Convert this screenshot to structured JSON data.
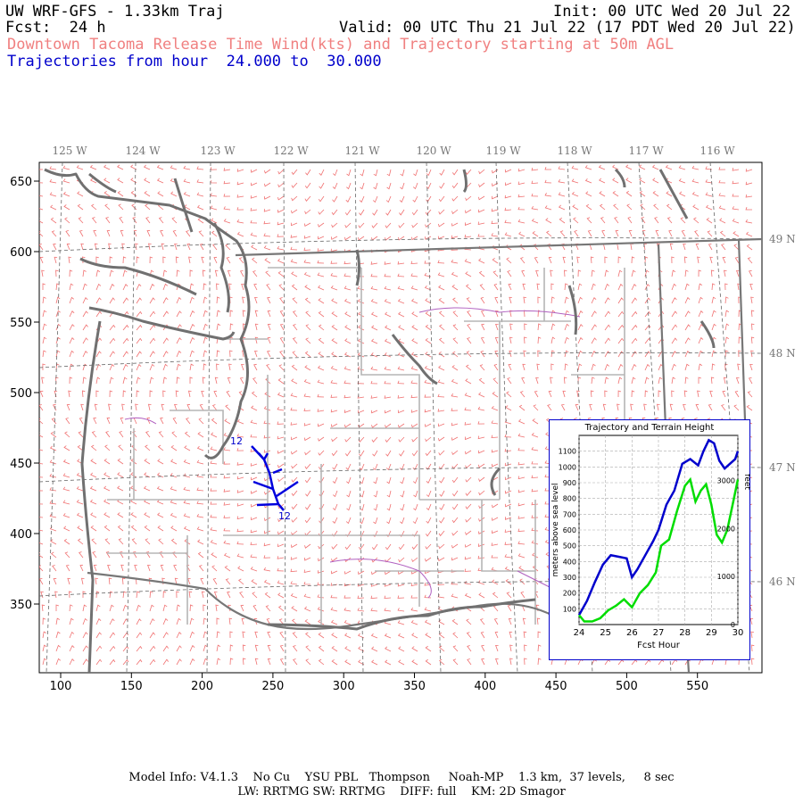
{
  "header": {
    "title": "UW WRF-GFS - 1.33km Traj",
    "fcst": "Fcst:  24 h",
    "init": "Init: 00 UTC Wed 20 Jul 22",
    "valid": "Valid: 00 UTC Thu 21 Jul 22 (17 PDT Wed 20 Jul 22)",
    "subtitle": "Downtown Tacoma Release Time Wind(kts) and Trajectory starting at 50m AGL",
    "trajectories": "Trajectories from hour  24.000 to  30.000"
  },
  "map": {
    "lon_labels": [
      "125 W",
      "124 W",
      "123 W",
      "122 W",
      "121 W",
      "120 W",
      "119 W",
      "118 W",
      "117 W",
      "116 W"
    ],
    "lat_labels": [
      "49 N",
      "48 N",
      "47 N",
      "46 N"
    ],
    "x_ticks": [
      "100",
      "150",
      "200",
      "250",
      "300",
      "350",
      "400",
      "450",
      "500",
      "550"
    ],
    "y_ticks": [
      "650",
      "600",
      "550",
      "500",
      "450",
      "400",
      "350"
    ],
    "traj_start_label": "12",
    "traj_end_label": "12",
    "colors": {
      "wind": "#f07070",
      "coast": "#707070",
      "county": "#b0b0b0",
      "trajectory": "#0000dd",
      "water_outline": "#b060c0"
    }
  },
  "chart_data": {
    "type": "line",
    "title": "Trajectory and Terrain Height",
    "xlabel": "Fcst Hour",
    "ylabel": "meters above sea level",
    "ylabel_right": "feet",
    "x_ticks": [
      "24",
      "25",
      "26",
      "27",
      "28",
      "29",
      "30"
    ],
    "y_ticks": [
      "100",
      "200",
      "300",
      "400",
      "500",
      "600",
      "700",
      "800",
      "900",
      "1000",
      "1100"
    ],
    "y2_ticks": [
      "0",
      "1000",
      "2000",
      "3000"
    ],
    "xlim": [
      24,
      30
    ],
    "ylim": [
      0,
      1200
    ],
    "grid": true,
    "series": [
      {
        "color": "#0000cc",
        "x": [
          24,
          24.3,
          24.6,
          24.9,
          25.2,
          25.5,
          25.8,
          26.0,
          26.2,
          26.5,
          26.8,
          27.0,
          27.3,
          27.6,
          27.9,
          28.2,
          28.5,
          28.7,
          28.9,
          29.1,
          29.3,
          29.5,
          29.7,
          29.9,
          30.0
        ],
        "values": [
          60,
          150,
          270,
          380,
          440,
          430,
          420,
          300,
          350,
          440,
          530,
          600,
          760,
          850,
          1020,
          1050,
          1010,
          1100,
          1170,
          1150,
          1040,
          990,
          1020,
          1050,
          1100
        ]
      },
      {
        "color": "#00dd00",
        "x": [
          24,
          24.2,
          24.5,
          24.8,
          25.1,
          25.4,
          25.7,
          26.0,
          26.3,
          26.6,
          26.9,
          27.1,
          27.4,
          27.7,
          28.0,
          28.2,
          28.4,
          28.6,
          28.8,
          29.0,
          29.2,
          29.4,
          29.6,
          29.8,
          30.0
        ],
        "values": [
          60,
          20,
          20,
          40,
          90,
          120,
          160,
          110,
          200,
          250,
          330,
          500,
          540,
          720,
          880,
          920,
          780,
          850,
          890,
          760,
          570,
          520,
          600,
          760,
          920
        ]
      }
    ]
  },
  "footer": {
    "line1": "Model Info: V4.1.3    No Cu    YSU PBL   Thompson     Noah-MP    1.3 km,  37 levels,     8 sec",
    "line2": "LW: RRTMG SW: RRTMG    DIFF: full    KM: 2D Smagor"
  }
}
